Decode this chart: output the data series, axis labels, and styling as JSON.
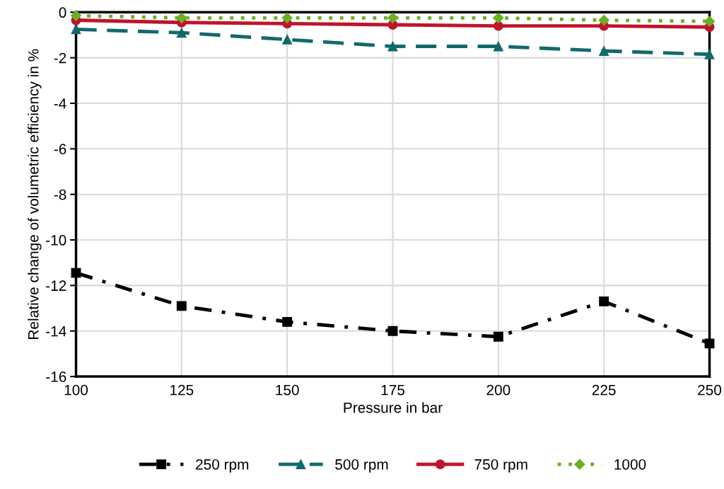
{
  "chart_data": {
    "type": "line",
    "xlabel": "Pressure in bar",
    "ylabel": "Relative change of volumetric efficiency in %",
    "x": [
      100,
      125,
      150,
      175,
      200,
      225,
      250
    ],
    "series": [
      {
        "name": "250 rpm",
        "color": "#000000",
        "marker": "square",
        "line_style": "dashdot",
        "values": [
          -11.45,
          -12.9,
          -13.6,
          -14.0,
          -14.25,
          -12.7,
          -14.55
        ]
      },
      {
        "name": "500 rpm",
        "color": "#12696b",
        "marker": "triangle",
        "line_style": "dashed",
        "values": [
          -0.75,
          -0.9,
          -1.2,
          -1.5,
          -1.5,
          -1.7,
          -1.85
        ]
      },
      {
        "name": "750 rpm",
        "color": "#c0142c",
        "marker": "circle",
        "line_style": "solid",
        "values": [
          -0.35,
          -0.45,
          -0.5,
          -0.55,
          -0.6,
          -0.6,
          -0.65
        ]
      },
      {
        "name": "1000",
        "color": "#6ab023",
        "marker": "diamond",
        "line_style": "dotted",
        "values": [
          -0.15,
          -0.25,
          -0.25,
          -0.25,
          -0.25,
          -0.35,
          -0.4
        ]
      }
    ],
    "xlim": [
      100,
      250
    ],
    "xticks": [
      100,
      125,
      150,
      175,
      200,
      225,
      250
    ],
    "ylim": [
      -16,
      0
    ],
    "yticks": [
      -16,
      -14,
      -12,
      -10,
      -8,
      -6,
      -4,
      -2,
      0
    ],
    "grid": true,
    "legend": "bottom"
  }
}
